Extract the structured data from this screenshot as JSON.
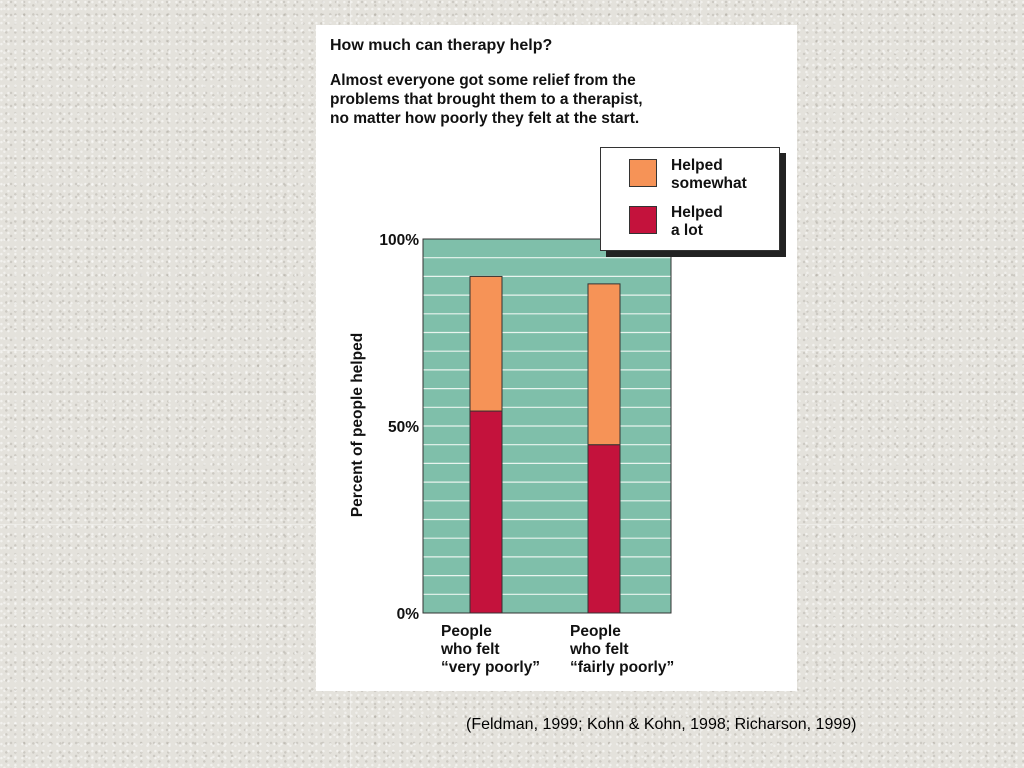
{
  "chart_data": {
    "type": "bar",
    "stacked": true,
    "title": "How much can therapy help?",
    "subtitle_lines": [
      "Almost everyone got some relief from the",
      "problems that brought them to a therapist,",
      "no matter how poorly they felt at the start."
    ],
    "ylabel": "Percent of people helped",
    "xlabel": "",
    "ylim": [
      0,
      100
    ],
    "y_ticks": [
      {
        "value": 0,
        "label": "0%"
      },
      {
        "value": 50,
        "label": "50%"
      },
      {
        "value": 100,
        "label": "100%"
      }
    ],
    "grid": true,
    "gridline_step": 5,
    "categories": [
      {
        "lines": [
          "People",
          "who felt",
          "“very poorly”"
        ]
      },
      {
        "lines": [
          "People",
          "who felt",
          "“fairly poorly”"
        ]
      }
    ],
    "series": [
      {
        "name_lines": [
          "Helped",
          "a lot"
        ],
        "values": [
          54,
          45
        ],
        "color": "#c4123c"
      },
      {
        "name_lines": [
          "Helped",
          "somewhat"
        ],
        "values": [
          36,
          43
        ],
        "color": "#f69357"
      }
    ],
    "legend_position": "top-right",
    "plot_background": "#7fbfaa",
    "gridline_color": "#e8f4ee"
  },
  "citation": "(Feldman, 1999; Kohn & Kohn, 1998; Richarson, 1999)"
}
